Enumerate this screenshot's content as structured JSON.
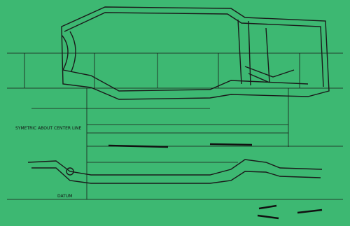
{
  "labels": {
    "center_note": "SYMETRIC ABOUT CENTER LINE",
    "datum": "DATUM"
  }
}
